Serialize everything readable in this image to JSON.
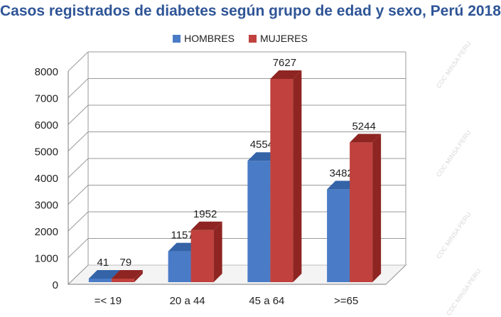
{
  "chart_data": {
    "type": "bar",
    "title": "Casos registrados de diabetes según grupo de edad y sexo, Perú 2018",
    "categories": [
      "=< 19",
      "20 a 44",
      "45 a 64",
      ">=65"
    ],
    "series": [
      {
        "name": "HOMBRES",
        "values": [
          41,
          1157,
          4554,
          3482
        ],
        "color": "#4a7bc6",
        "top": "#3463a8",
        "side": "#2d5a99"
      },
      {
        "name": "MUJERES",
        "values": [
          79,
          1952,
          7627,
          5244
        ],
        "color": "#c0413d",
        "top": "#8e2522",
        "side": "#8e2522"
      }
    ],
    "ylim": [
      0,
      8000
    ],
    "yticks": [
      0,
      1000,
      2000,
      3000,
      4000,
      5000,
      6000,
      7000,
      8000
    ],
    "grid": true,
    "legend": "top-center",
    "title_color": "#2f5597"
  },
  "watermark": "CDC MINSA PERU"
}
